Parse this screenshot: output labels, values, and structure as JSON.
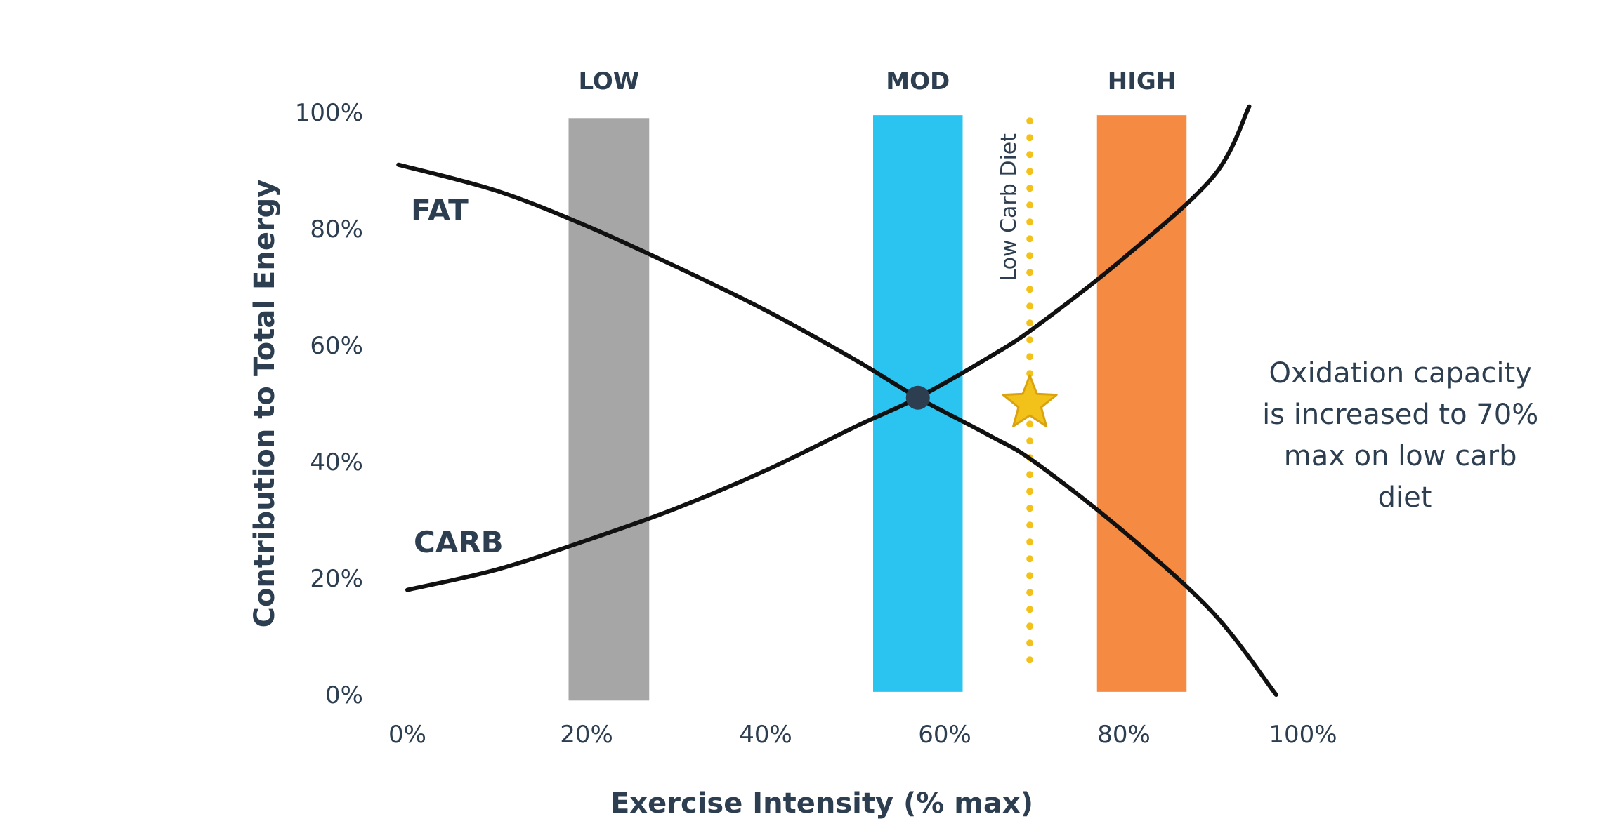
{
  "chart_data": {
    "type": "line",
    "title": "",
    "xlabel": "Exercise Intensity (% max)",
    "ylabel": "Contribution to Total Energy",
    "xlim": [
      0,
      100
    ],
    "ylim": [
      0,
      100
    ],
    "x_ticks": [
      "0%",
      "20%",
      "40%",
      "60%",
      "80%",
      "100%"
    ],
    "y_ticks": [
      "0%",
      "20%",
      "40%",
      "60%",
      "80%",
      "100%"
    ],
    "grid": false,
    "legend": "none",
    "zones": [
      {
        "label": "LOW",
        "x_start": 18,
        "x_end": 27,
        "y_top": 99,
        "y_bottom": -1,
        "color": "#a6a6a6"
      },
      {
        "label": "MOD",
        "x_start": 52,
        "x_end": 62,
        "y_top": 99.5,
        "y_bottom": 0.5,
        "color": "#2bc3ef"
      },
      {
        "label": "HIGH",
        "x_start": 77,
        "x_end": 87,
        "y_top": 99.5,
        "y_bottom": 0.5,
        "color": "#f58a42"
      }
    ],
    "series": [
      {
        "name": "FAT",
        "color": "#111111",
        "x": [
          -1,
          10,
          20,
          30,
          40,
          50,
          57,
          65,
          70,
          80,
          90,
          97
        ],
        "y": [
          91,
          86.5,
          80.5,
          73.5,
          66,
          57.5,
          51,
          44.5,
          40,
          28,
          14,
          0
        ]
      },
      {
        "name": "CARB",
        "color": "#111111",
        "x": [
          0,
          10,
          20,
          30,
          40,
          50,
          57,
          65,
          70,
          80,
          90,
          94
        ],
        "y": [
          18,
          21.5,
          26.5,
          32,
          38.5,
          46,
          51,
          58,
          63,
          75,
          89,
          101
        ]
      }
    ],
    "crossover_point": {
      "x": 57,
      "y": 51,
      "color": "#2c3e50"
    },
    "reference_line": {
      "label": "Low Carb Diet",
      "x": 69.5,
      "y_from": 6,
      "y_to": 101,
      "color": "#f2c21b"
    },
    "star": {
      "x": 69.5,
      "y": 50,
      "color": "#f2c21b"
    },
    "annotation": [
      "Oxidation capacity",
      "is increased to 70%",
      "max on low carb",
      "diet"
    ]
  }
}
